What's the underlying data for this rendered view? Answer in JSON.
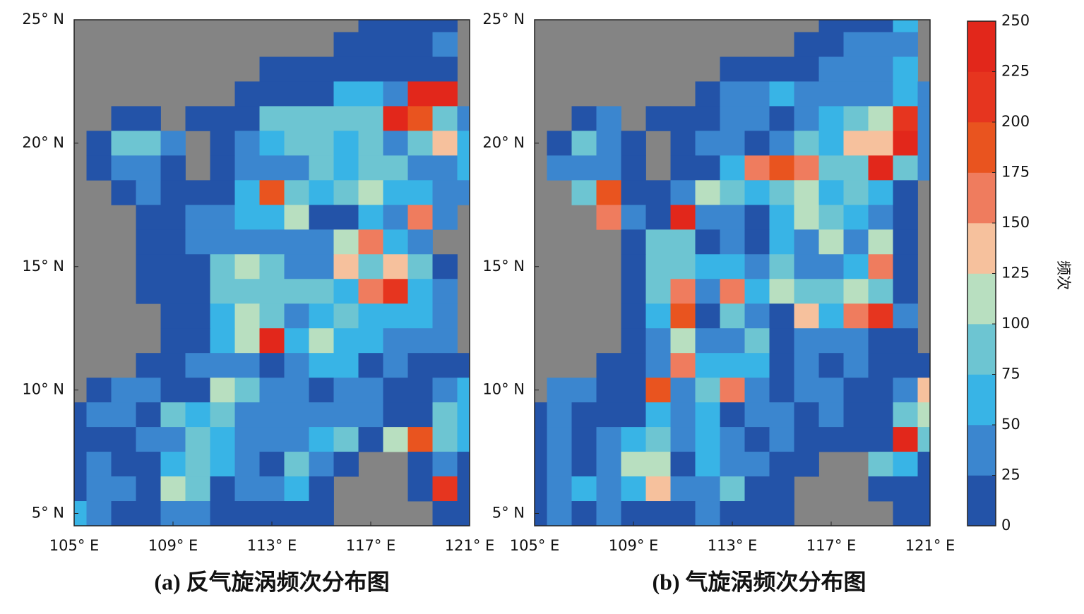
{
  "chart_data": [
    {
      "type": "heatmap",
      "title": "(a) 反气旋涡频次分布图",
      "x": [
        105,
        106,
        107,
        108,
        109,
        110,
        111,
        112,
        113,
        114,
        115,
        116,
        117,
        118,
        119,
        120,
        121
      ],
      "y": [
        25,
        24,
        23,
        22,
        21,
        20,
        19,
        18,
        17,
        16,
        15,
        14,
        13,
        12,
        11,
        10,
        9,
        8,
        7,
        6,
        5
      ],
      "xlim": [
        105,
        121
      ],
      "ylim": [
        4.5,
        25
      ],
      "xticks": [
        {
          "value": 105,
          "label": "105° E"
        },
        {
          "value": 109,
          "label": "109° E"
        },
        {
          "value": 113,
          "label": "113° E"
        },
        {
          "value": 117,
          "label": "117° E"
        },
        {
          "value": 121,
          "label": "121° E"
        }
      ],
      "yticks": [
        {
          "value": 25,
          "label": "25° N"
        },
        {
          "value": 20,
          "label": "20° N"
        },
        {
          "value": 15,
          "label": "15° N"
        },
        {
          "value": 10,
          "label": "10° N"
        },
        {
          "value": 5,
          "label": "5° N"
        }
      ],
      "values": [
        [
          null,
          null,
          null,
          null,
          null,
          null,
          null,
          null,
          null,
          null,
          null,
          null,
          12,
          12,
          12,
          12,
          null
        ],
        [
          null,
          null,
          null,
          null,
          null,
          null,
          null,
          null,
          null,
          null,
          null,
          12,
          12,
          12,
          12,
          37,
          null
        ],
        [
          null,
          null,
          null,
          null,
          null,
          null,
          null,
          null,
          12,
          12,
          12,
          12,
          12,
          12,
          12,
          12,
          null
        ],
        [
          null,
          null,
          null,
          null,
          null,
          null,
          null,
          12,
          12,
          12,
          12,
          62,
          62,
          37,
          237,
          237,
          null
        ],
        [
          null,
          null,
          12,
          12,
          null,
          12,
          12,
          12,
          87,
          87,
          87,
          87,
          87,
          237,
          187,
          87,
          37
        ],
        [
          null,
          12,
          87,
          87,
          37,
          null,
          12,
          37,
          62,
          87,
          87,
          62,
          87,
          37,
          87,
          137,
          62
        ],
        [
          null,
          12,
          37,
          37,
          12,
          null,
          12,
          37,
          37,
          37,
          87,
          62,
          87,
          87,
          37,
          37,
          62
        ],
        [
          null,
          null,
          12,
          37,
          12,
          12,
          12,
          62,
          187,
          87,
          62,
          87,
          112,
          62,
          62,
          37,
          37
        ],
        [
          null,
          null,
          null,
          12,
          12,
          37,
          37,
          62,
          62,
          112,
          12,
          12,
          62,
          37,
          162,
          37,
          null
        ],
        [
          null,
          null,
          null,
          12,
          12,
          37,
          37,
          37,
          37,
          37,
          37,
          112,
          162,
          62,
          37,
          null,
          null
        ],
        [
          null,
          null,
          null,
          12,
          12,
          12,
          87,
          112,
          87,
          37,
          37,
          137,
          87,
          137,
          87,
          12,
          null
        ],
        [
          null,
          null,
          null,
          12,
          12,
          12,
          87,
          87,
          87,
          87,
          87,
          62,
          162,
          212,
          62,
          37,
          null
        ],
        [
          null,
          null,
          null,
          null,
          12,
          12,
          62,
          112,
          87,
          37,
          62,
          87,
          62,
          62,
          62,
          37,
          null
        ],
        [
          null,
          null,
          null,
          null,
          12,
          12,
          62,
          112,
          237,
          62,
          112,
          62,
          62,
          37,
          37,
          37,
          null
        ],
        [
          null,
          null,
          null,
          12,
          12,
          37,
          37,
          37,
          12,
          37,
          62,
          62,
          12,
          37,
          12,
          12,
          12
        ],
        [
          null,
          12,
          37,
          37,
          12,
          12,
          112,
          87,
          37,
          37,
          12,
          37,
          37,
          12,
          12,
          37,
          62
        ],
        [
          12,
          37,
          37,
          12,
          87,
          62,
          87,
          37,
          37,
          37,
          37,
          37,
          37,
          12,
          12,
          87,
          62
        ],
        [
          12,
          12,
          12,
          37,
          37,
          87,
          62,
          37,
          37,
          37,
          62,
          87,
          12,
          112,
          187,
          87,
          62
        ],
        [
          12,
          37,
          12,
          12,
          62,
          87,
          62,
          37,
          12,
          87,
          37,
          12,
          null,
          null,
          12,
          37,
          12
        ],
        [
          12,
          37,
          37,
          12,
          112,
          87,
          12,
          37,
          37,
          62,
          12,
          null,
          null,
          null,
          12,
          212,
          12
        ],
        [
          62,
          37,
          12,
          12,
          37,
          37,
          12,
          12,
          12,
          12,
          12,
          null,
          null,
          null,
          null,
          12,
          12
        ]
      ]
    },
    {
      "type": "heatmap",
      "title": "(b) 气旋涡频次分布图",
      "x": [
        105,
        106,
        107,
        108,
        109,
        110,
        111,
        112,
        113,
        114,
        115,
        116,
        117,
        118,
        119,
        120,
        121
      ],
      "y": [
        25,
        24,
        23,
        22,
        21,
        20,
        19,
        18,
        17,
        16,
        15,
        14,
        13,
        12,
        11,
        10,
        9,
        8,
        7,
        6,
        5
      ],
      "xlim": [
        105,
        121
      ],
      "ylim": [
        4.5,
        25
      ],
      "xticks": [
        {
          "value": 105,
          "label": "105° E"
        },
        {
          "value": 109,
          "label": "109° E"
        },
        {
          "value": 113,
          "label": "113° E"
        },
        {
          "value": 117,
          "label": "117° E"
        },
        {
          "value": 121,
          "label": "121° E"
        }
      ],
      "yticks": [
        {
          "value": 25,
          "label": "25° N"
        },
        {
          "value": 20,
          "label": "20° N"
        },
        {
          "value": 15,
          "label": "15° N"
        },
        {
          "value": 10,
          "label": "10° N"
        },
        {
          "value": 5,
          "label": "5° N"
        }
      ],
      "values": [
        [
          null,
          null,
          null,
          null,
          null,
          null,
          null,
          null,
          null,
          null,
          null,
          null,
          12,
          12,
          12,
          62,
          null
        ],
        [
          null,
          null,
          null,
          null,
          null,
          null,
          null,
          null,
          null,
          null,
          null,
          12,
          12,
          37,
          37,
          37,
          null
        ],
        [
          null,
          null,
          null,
          null,
          null,
          null,
          null,
          null,
          12,
          12,
          12,
          12,
          37,
          37,
          37,
          62,
          null
        ],
        [
          null,
          null,
          null,
          null,
          null,
          null,
          null,
          12,
          37,
          37,
          62,
          37,
          37,
          37,
          37,
          62,
          37
        ],
        [
          null,
          null,
          12,
          37,
          null,
          12,
          12,
          12,
          37,
          37,
          12,
          37,
          62,
          87,
          112,
          212,
          37
        ],
        [
          null,
          12,
          87,
          37,
          12,
          null,
          12,
          37,
          37,
          12,
          37,
          87,
          62,
          137,
          137,
          237,
          37
        ],
        [
          null,
          37,
          37,
          37,
          12,
          null,
          12,
          12,
          62,
          162,
          187,
          162,
          87,
          87,
          237,
          87,
          37
        ],
        [
          null,
          null,
          87,
          187,
          12,
          12,
          37,
          112,
          87,
          62,
          87,
          112,
          62,
          87,
          62,
          12,
          null
        ],
        [
          null,
          null,
          null,
          162,
          37,
          12,
          237,
          37,
          37,
          12,
          62,
          112,
          87,
          62,
          37,
          12,
          null
        ],
        [
          null,
          null,
          null,
          null,
          12,
          87,
          87,
          12,
          37,
          12,
          62,
          37,
          112,
          37,
          112,
          12,
          null
        ],
        [
          null,
          null,
          null,
          null,
          12,
          87,
          87,
          62,
          62,
          37,
          87,
          37,
          37,
          62,
          162,
          12,
          null
        ],
        [
          null,
          null,
          null,
          null,
          12,
          87,
          162,
          37,
          162,
          62,
          112,
          87,
          87,
          112,
          87,
          12,
          null
        ],
        [
          null,
          null,
          null,
          null,
          12,
          62,
          187,
          12,
          87,
          37,
          12,
          137,
          62,
          162,
          212,
          37,
          null
        ],
        [
          null,
          null,
          null,
          null,
          12,
          37,
          112,
          37,
          37,
          87,
          12,
          37,
          37,
          37,
          12,
          12,
          null
        ],
        [
          null,
          null,
          null,
          12,
          12,
          37,
          162,
          62,
          62,
          62,
          12,
          37,
          12,
          37,
          12,
          12,
          12
        ],
        [
          null,
          37,
          37,
          12,
          12,
          187,
          37,
          87,
          162,
          37,
          12,
          37,
          37,
          12,
          12,
          37,
          137
        ],
        [
          12,
          37,
          12,
          12,
          12,
          62,
          37,
          62,
          12,
          37,
          37,
          12,
          37,
          12,
          12,
          87,
          112
        ],
        [
          12,
          37,
          12,
          37,
          62,
          87,
          37,
          62,
          37,
          12,
          37,
          12,
          12,
          12,
          12,
          237,
          87
        ],
        [
          12,
          37,
          12,
          37,
          112,
          112,
          12,
          62,
          37,
          37,
          12,
          12,
          null,
          null,
          87,
          62,
          12
        ],
        [
          12,
          37,
          62,
          37,
          62,
          137,
          37,
          37,
          87,
          12,
          12,
          null,
          null,
          null,
          12,
          12,
          12
        ],
        [
          12,
          37,
          12,
          37,
          12,
          12,
          12,
          37,
          12,
          12,
          12,
          null,
          null,
          null,
          null,
          12,
          12
        ]
      ]
    }
  ],
  "colorbar": {
    "label": "频次",
    "ticks": [
      0,
      25,
      50,
      75,
      100,
      125,
      150,
      175,
      200,
      225,
      250
    ],
    "colors": [
      "#2353a8",
      "#3b86cf",
      "#38b4e6",
      "#6dc5d2",
      "#b8dfc0",
      "#f6c19d",
      "#ef7c5e",
      "#e9541f",
      "#e6351f",
      "#e2271b"
    ]
  }
}
